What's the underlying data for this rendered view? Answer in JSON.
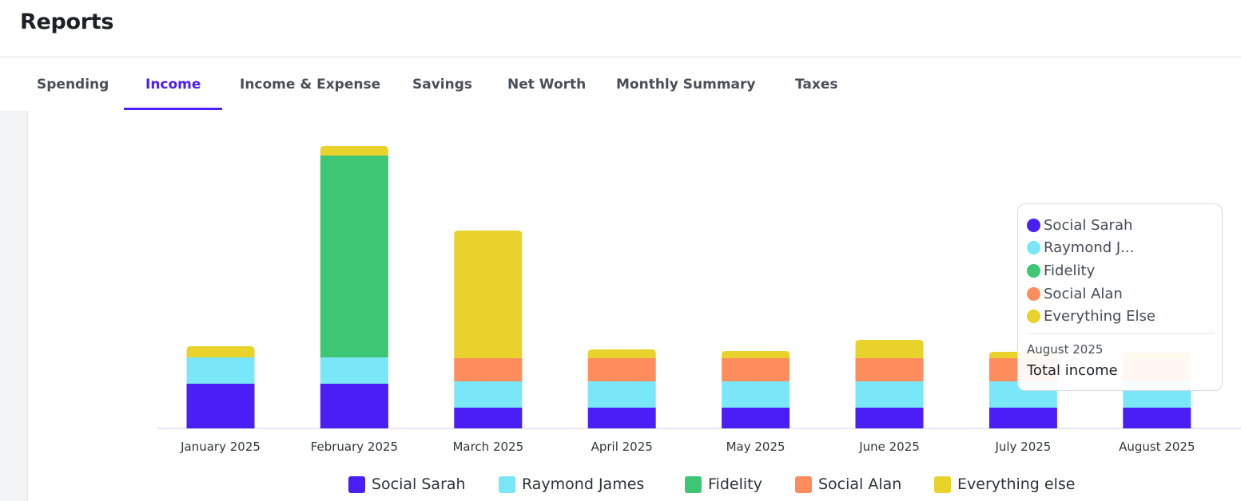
{
  "header": {
    "title": "Reports"
  },
  "tabs": [
    {
      "label": "Spending",
      "active": false
    },
    {
      "label": "Income",
      "active": true
    },
    {
      "label": "Income & Expense",
      "active": false
    },
    {
      "label": "Savings",
      "active": false
    },
    {
      "label": "Net Worth",
      "active": false
    },
    {
      "label": "Monthly Summary",
      "active": false
    },
    {
      "label": "Taxes",
      "active": false
    }
  ],
  "colors": {
    "accent": "#4a1ff5",
    "social_sarah": "#4a1ff5",
    "raymond_james": "#7ae7f9",
    "fidelity": "#3dc674",
    "social_alan": "#ff8c5d",
    "everything_else": "#e8d22b"
  },
  "chart_data": {
    "type": "bar",
    "stacked": true,
    "title": "",
    "xlabel": "",
    "ylabel": "",
    "y_axis_shown": false,
    "grid": false,
    "legend_position": "bottom-center",
    "categories": [
      "January 2025",
      "February 2025",
      "March 2025",
      "April 2025",
      "May 2025",
      "June 2025",
      "July 2025",
      "August 2025"
    ],
    "ylim": [
      0,
      360
    ],
    "series": [
      {
        "name": "Social Sarah",
        "color": "#4a1ff5",
        "values": [
          56,
          56,
          26,
          26,
          26,
          26,
          26,
          26
        ]
      },
      {
        "name": "Raymond James",
        "color": "#7ae7f9",
        "values": [
          33,
          33,
          33,
          33,
          33,
          33,
          33,
          33
        ]
      },
      {
        "name": "Fidelity",
        "color": "#3dc674",
        "values": [
          0,
          253,
          0,
          0,
          0,
          0,
          0,
          0
        ]
      },
      {
        "name": "Social Alan",
        "color": "#ff8c5d",
        "values": [
          0,
          0,
          29,
          29,
          29,
          29,
          29,
          29
        ]
      },
      {
        "name": "Everything else",
        "color": "#e8d22b",
        "values": [
          14,
          12,
          160,
          11,
          9,
          23,
          8,
          8
        ]
      }
    ]
  },
  "tooltip": {
    "items": [
      {
        "label": "Social Sarah",
        "color": "#4a1ff5"
      },
      {
        "label": "Raymond J...",
        "color": "#7ae7f9"
      },
      {
        "label": "Fidelity",
        "color": "#3dc674"
      },
      {
        "label": "Social Alan",
        "color": "#ff8c5d"
      },
      {
        "label": "Everything Else",
        "color": "#e8d22b"
      }
    ],
    "month": "August 2025",
    "total_label": "Total income"
  }
}
